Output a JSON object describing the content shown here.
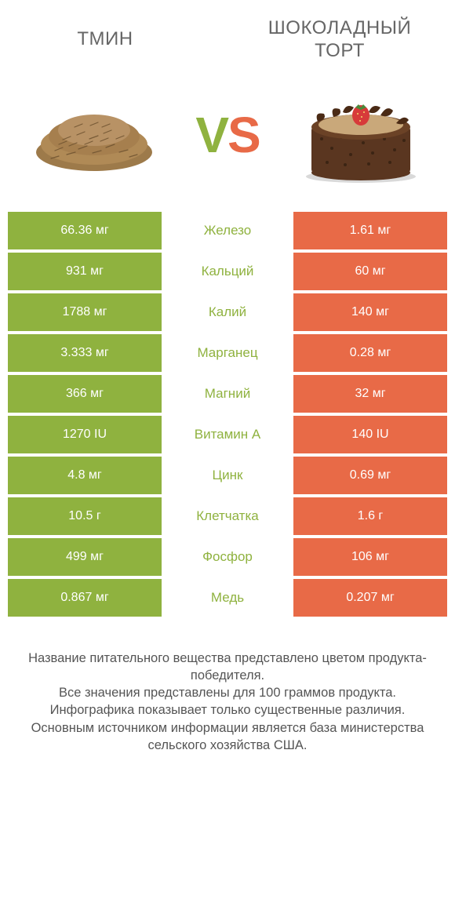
{
  "header": {
    "left_title": "ТМИН",
    "right_title": "ШОКОЛАДНЫЙ ТОРТ",
    "vs_v": "V",
    "vs_s": "S"
  },
  "colors": {
    "left": "#8fb23f",
    "right": "#e86a47",
    "text": "#666666",
    "row_gap_bg": "#ffffff"
  },
  "table": {
    "rows": [
      {
        "left": "66.36 мг",
        "label": "Железо",
        "right": "1.61 мг",
        "winner": "left"
      },
      {
        "left": "931 мг",
        "label": "Кальций",
        "right": "60 мг",
        "winner": "left"
      },
      {
        "left": "1788 мг",
        "label": "Калий",
        "right": "140 мг",
        "winner": "left"
      },
      {
        "left": "3.333 мг",
        "label": "Марганец",
        "right": "0.28 мг",
        "winner": "left"
      },
      {
        "left": "366 мг",
        "label": "Магний",
        "right": "32 мг",
        "winner": "left"
      },
      {
        "left": "1270 IU",
        "label": "Витамин A",
        "right": "140 IU",
        "winner": "left"
      },
      {
        "left": "4.8 мг",
        "label": "Цинк",
        "right": "0.69 мг",
        "winner": "left"
      },
      {
        "left": "10.5 г",
        "label": "Клетчатка",
        "right": "1.6 г",
        "winner": "left"
      },
      {
        "left": "499 мг",
        "label": "Фосфор",
        "right": "106 мг",
        "winner": "left"
      },
      {
        "left": "0.867 мг",
        "label": "Медь",
        "right": "0.207 мг",
        "winner": "left"
      }
    ]
  },
  "images": {
    "left_icon": "cumin-seeds",
    "right_icon": "chocolate-cake"
  },
  "footer": {
    "line1": "Название питательного вещества представлено цветом продукта-победителя.",
    "line2": "Все значения представлены для 100 граммов продукта.",
    "line3": "Инфографика показывает только существенные различия.",
    "line4": "Основным источником информации является база министерства сельского хозяйства США."
  }
}
